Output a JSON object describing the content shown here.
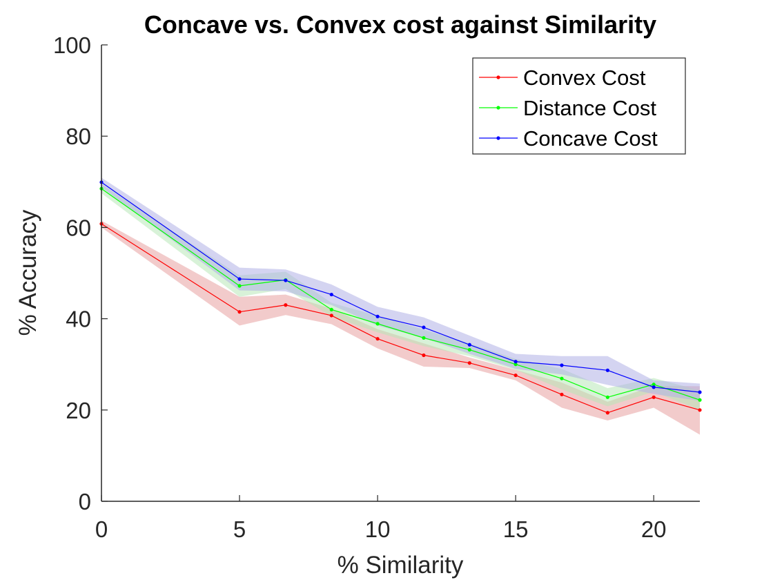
{
  "chart_data": {
    "type": "line",
    "title": "Concave vs. Convex cost against Similarity",
    "xlabel": "% Similarity",
    "ylabel": "% Accuracy",
    "xlim": [
      0,
      21.67
    ],
    "ylim": [
      0,
      100
    ],
    "xticks": [
      0,
      5,
      10,
      15,
      20
    ],
    "yticks": [
      0,
      20,
      40,
      60,
      80,
      100
    ],
    "grid": false,
    "legend_position": "top-right",
    "x": [
      0,
      5,
      6.67,
      8.33,
      10,
      11.67,
      13.33,
      15,
      16.67,
      18.33,
      20,
      21.67
    ],
    "series": [
      {
        "name": "Convex Cost",
        "color": "#ff0000",
        "band_color": "#e8a0a0",
        "values": [
          60.8,
          41.5,
          43.0,
          40.7,
          35.6,
          32.0,
          30.3,
          27.6,
          23.4,
          19.4,
          22.8,
          20.0
        ],
        "lower": [
          60.0,
          38.5,
          40.8,
          38.8,
          33.5,
          29.5,
          29.2,
          26.5,
          20.5,
          17.7,
          20.5,
          14.6
        ],
        "upper": [
          61.5,
          44.8,
          45.3,
          42.2,
          37.7,
          34.6,
          31.5,
          28.8,
          26.0,
          21.8,
          25.3,
          25.2
        ]
      },
      {
        "name": "Distance Cost",
        "color": "#00ff00",
        "band_color": "#b8e8b8",
        "values": [
          68.5,
          47.2,
          48.5,
          42.0,
          38.9,
          35.8,
          33.2,
          30.0,
          26.9,
          22.8,
          25.6,
          22.2
        ],
        "lower": [
          67.5,
          44.8,
          46.5,
          40.5,
          37.0,
          34.0,
          31.8,
          28.8,
          24.5,
          20.8,
          24.0,
          20.0
        ],
        "upper": [
          69.5,
          49.5,
          50.3,
          43.5,
          40.6,
          37.6,
          34.6,
          31.2,
          29.0,
          24.8,
          27.0,
          24.3
        ]
      },
      {
        "name": "Concave Cost",
        "color": "#0000ff",
        "band_color": "#b0b0e6",
        "values": [
          69.9,
          48.7,
          48.4,
          45.3,
          40.5,
          38.1,
          34.3,
          30.6,
          29.8,
          28.7,
          25.0,
          23.9
        ],
        "lower": [
          68.8,
          46.2,
          46.0,
          43.0,
          38.5,
          35.8,
          32.3,
          29.0,
          27.8,
          25.5,
          23.5,
          22.0
        ],
        "upper": [
          70.9,
          51.2,
          50.8,
          47.5,
          42.6,
          40.3,
          36.3,
          32.3,
          31.8,
          31.8,
          26.5,
          25.8
        ]
      }
    ]
  }
}
